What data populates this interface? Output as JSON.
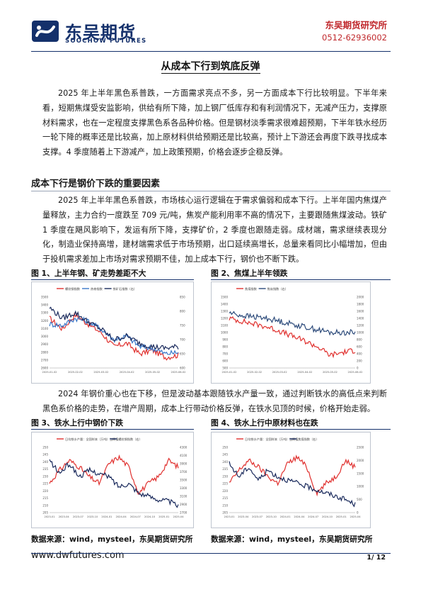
{
  "header": {
    "logo_cn": "东吴期货",
    "logo_en": "SOOCHOW FUTURES",
    "institute": "东吴期货研究所",
    "phone": "0512-62936002"
  },
  "title": "从成本下行到筑底反弹",
  "intro": "2025 年上半年黑色系普跌，一方面需求亮点不多，另一方面成本下行比较明显。下半年来看，短期焦煤受安监影响，供给有所下降，加上钢厂低库存和有利润情况下，无减产压力，支撑原材料需求，也在一定程度支撑黑色系各品种价格。但是钢材淡季需求很难超预期，下半年铁水经历一轮下降的概率还是比较高，加上原材料供给预期还是比较高，预计上下游还会再度下跌寻找成本支撑。4 季度随着上下游减产，加上政策预期，价格会逐步企稳反弹。",
  "section": {
    "heading": "成本下行是钢价下跌的重要因素",
    "para1": "2025 年上半年黑色系普跌，市场核心运行逻辑在于需求偏弱和成本下行。上半年国内焦煤产量释放，主力合约一度跌至 709 元/吨，焦炭产能利用率不高的情况下，主要跟随焦煤波动。铁矿 1 季度在飓风影响下，发运有所下降，支撑矿价，2 季度也跟随走弱。成材端，需求继续表现分化，制造业保持高增，建材端需求低于市场预期，出口延续高增长，总量来看同比小幅增加，但由于投机需求差加上市场对需求预期不佳，加上成本下行，钢价也不断下跌。",
    "para2": "2024 年钢价重心也在下移，但是波动基本跟随铁水产量一致，通过判断铁水的高低点来判断黑色系价格的走势，在增产周期，成本上行带动价格反弹，在铁水见顶的时候，价格开始走弱。"
  },
  "figures": [
    {
      "title": "图 1、上半年钢、矿走势差距不大",
      "legend": [
        "螺纹钢指数",
        "热卷指数",
        "铁矿石指数（右）"
      ],
      "colors": [
        "#e0302e",
        "#3a78c9",
        "#1a2a5c"
      ],
      "y_left_ticks": [
        "3500",
        "3400",
        "3300",
        "3200",
        "3100",
        "3000",
        "2900",
        "2800",
        "2700",
        "2600"
      ],
      "y_right_ticks": [
        "850",
        "800",
        "750",
        "700",
        "650",
        "600"
      ],
      "x_ticks": [
        "2025-01-02",
        "2025-02-02",
        "2025-03-02",
        "2025-04-02",
        "2025-05-02",
        "2025-06-02"
      ]
    },
    {
      "title": "图 2、焦煤上半年领跌",
      "legend": [
        "焦煤指数",
        "焦炭指数（右）"
      ],
      "colors": [
        "#e0302e",
        "#2c4a7a"
      ],
      "y_left_ticks": [
        "1500",
        "1400",
        "1300",
        "1200",
        "1100",
        "1000",
        "900",
        "800",
        "700",
        "600",
        "500"
      ],
      "y_right_ticks": [
        "2000",
        "1800",
        "1600",
        "1400",
        "1200",
        "1000",
        "800",
        "600",
        "400",
        "200",
        "0"
      ],
      "x_ticks": [
        "2025-01-02",
        "2025-02-02",
        "2025-03-02",
        "2025-04-02",
        "2025-05-02",
        "2025-06-02"
      ]
    },
    {
      "title": "图 3、铁水上行中钢价下跌",
      "legend": [
        "日均铁水产量：全国样本（万吨）当周值",
        "螺纹钢指数（右）"
      ],
      "colors": [
        "#e0302e",
        "#1a2a5c"
      ],
      "y_left_ticks": [
        "250",
        "245",
        "240",
        "235",
        "230",
        "225",
        "220",
        "215",
        "210",
        "205"
      ],
      "y_right_ticks": [
        "4300",
        "4100",
        "3900",
        "3700",
        "3500",
        "3300",
        "3100",
        "2900",
        "2700"
      ],
      "x_ticks": [
        "2023-01",
        "2023-04",
        "2023-07",
        "2023-10",
        "2024-01",
        "2024-04",
        "2024-07",
        "2024-10",
        "2025-01",
        "2025-04"
      ]
    },
    {
      "title": "图 4、铁水上行中原材料也在跌",
      "legend": [
        "日均铁水产量：全国样本（万吨）当周值",
        "焦煤指数（右）"
      ],
      "colors": [
        "#e0302e",
        "#1a2a5c"
      ],
      "y_left_ticks": [
        "250",
        "245",
        "240",
        "235",
        "230",
        "225",
        "220",
        "215",
        "210",
        "205"
      ],
      "y_right_ticks": [
        "2500",
        "2000",
        "1500",
        "1000",
        "500",
        "0"
      ],
      "x_ticks": [
        "2023-01",
        "2023-04",
        "2023-07",
        "2023-10",
        "2024-01",
        "2024-04",
        "2024-07",
        "2024-10",
        "2025-01",
        "2025-04"
      ]
    }
  ],
  "source_text": "数据来源：wind，mysteel，东吴期货研究所",
  "footer": {
    "website": "www.dwfutures.com",
    "page": "1/  12"
  }
}
